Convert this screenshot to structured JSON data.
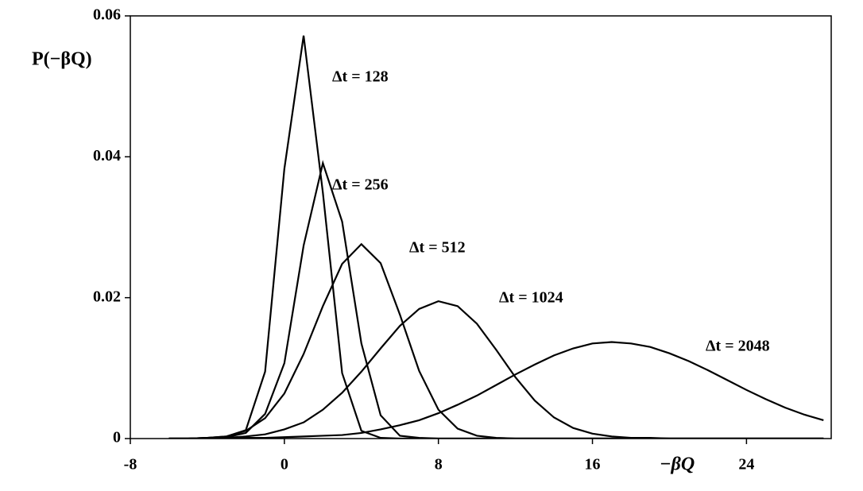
{
  "chart_data": {
    "type": "line",
    "x_label": "−βQ",
    "y_label": "P(−βQ)",
    "x": [
      -6,
      -5,
      -4,
      -3,
      -2,
      -1,
      0,
      1,
      2,
      3,
      4,
      5,
      6,
      7,
      8,
      9,
      10,
      11,
      12,
      13,
      14,
      15,
      16,
      17,
      18,
      19,
      20,
      21,
      22,
      23,
      24,
      25,
      26,
      27,
      28
    ],
    "series": [
      {
        "name": "Δt  = 128",
        "color": "#000000",
        "values": [
          0,
          0,
          0.0001,
          0.0003,
          0.0012,
          0.0095,
          0.0383,
          0.0572,
          0.0349,
          0.0093,
          0.0011,
          0.0001,
          0,
          0,
          0,
          0,
          0,
          0,
          0,
          0,
          0,
          0,
          0,
          0,
          0,
          0,
          0,
          0,
          0,
          0,
          0,
          0,
          0,
          0,
          0
        ]
      },
      {
        "name": "Δt  = 256",
        "color": "#000000",
        "values": [
          0,
          0,
          0.0001,
          0.0002,
          0.0008,
          0.0035,
          0.0107,
          0.0274,
          0.0391,
          0.0308,
          0.0135,
          0.0033,
          0.0004,
          0.0001,
          0,
          0,
          0,
          0,
          0,
          0,
          0,
          0,
          0,
          0,
          0,
          0,
          0,
          0,
          0,
          0,
          0,
          0,
          0,
          0,
          0
        ]
      },
      {
        "name": "Δt  = 512",
        "color": "#000000",
        "values": [
          0,
          0,
          0.0001,
          0.0003,
          0.0011,
          0.0029,
          0.0064,
          0.012,
          0.0188,
          0.0248,
          0.0276,
          0.0249,
          0.0176,
          0.0096,
          0.0041,
          0.0014,
          0.0004,
          0.0001,
          0,
          0,
          0,
          0,
          0,
          0,
          0,
          0,
          0,
          0,
          0,
          0,
          0,
          0,
          0,
          0,
          0
        ]
      },
      {
        "name": "Δt  = 1024",
        "color": "#000000",
        "values": [
          0,
          0,
          0.0001,
          0.0001,
          0.0003,
          0.0006,
          0.0013,
          0.0023,
          0.0041,
          0.0065,
          0.0095,
          0.0128,
          0.016,
          0.0184,
          0.0195,
          0.0188,
          0.0163,
          0.0126,
          0.0087,
          0.0054,
          0.003,
          0.0015,
          0.0007,
          0.0003,
          0.0001,
          0.0001,
          0,
          0,
          0,
          0,
          0,
          0,
          0,
          0,
          0
        ]
      },
      {
        "name": "Δt  = 2048",
        "color": "#000000",
        "values": [
          0,
          0,
          0,
          0,
          0.0001,
          0.0001,
          0.0002,
          0.0003,
          0.0004,
          0.0005,
          0.0008,
          0.0013,
          0.0019,
          0.0026,
          0.0036,
          0.0048,
          0.0061,
          0.0076,
          0.0091,
          0.0105,
          0.0118,
          0.0128,
          0.0135,
          0.0137,
          0.0135,
          0.013,
          0.0121,
          0.011,
          0.0097,
          0.0083,
          0.0069,
          0.0056,
          0.0044,
          0.0034,
          0.0026
        ]
      }
    ],
    "xlim": [
      -8,
      28.4
    ],
    "xticks": [
      -8,
      0,
      8,
      16,
      24
    ],
    "ylim": [
      0,
      0.06
    ],
    "yticks": [
      0,
      0.02,
      0.04,
      0.06
    ]
  }
}
